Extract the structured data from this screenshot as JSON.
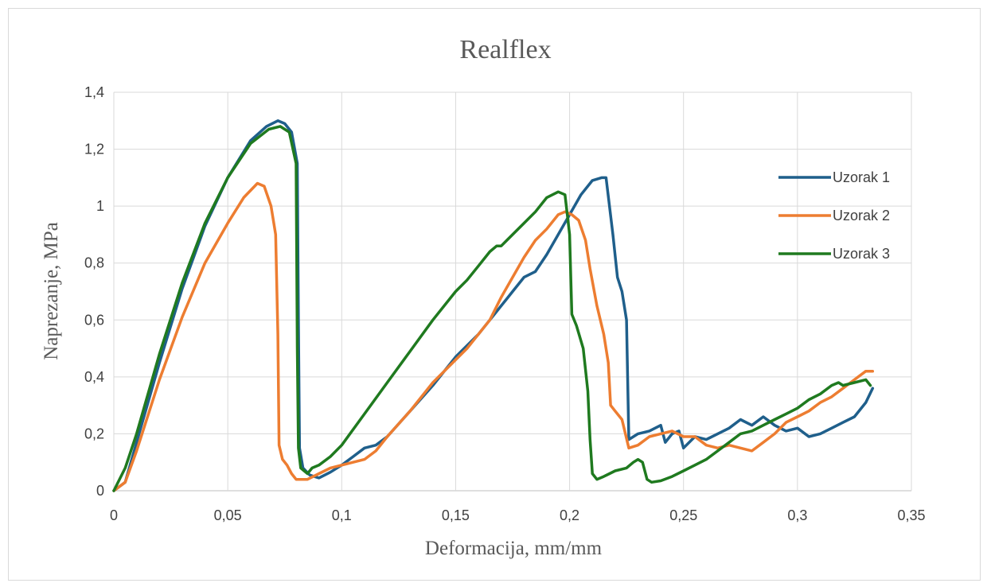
{
  "chart_data": {
    "type": "line",
    "title": "Realflex",
    "xlabel": "Deformacija, mm/mm",
    "ylabel": "Naprezanje, MPa",
    "xlim": [
      0,
      0.35
    ],
    "ylim": [
      0,
      1.4
    ],
    "x_ticks": [
      0,
      0.05,
      0.1,
      0.15,
      0.2,
      0.25,
      0.3,
      0.35
    ],
    "x_tick_labels": [
      "0",
      "0,05",
      "0,1",
      "0,15",
      "0,2",
      "0,25",
      "0,3",
      "0,35"
    ],
    "y_ticks": [
      0,
      0.2,
      0.4,
      0.6,
      0.8,
      1,
      1.2,
      1.4
    ],
    "y_tick_labels": [
      "0",
      "0,2",
      "0,4",
      "0,6",
      "0,8",
      "1",
      "1,2",
      "1,4"
    ],
    "grid": true,
    "legend_position": "right",
    "series": [
      {
        "name": "Uzorak 1",
        "color": "#1f5f8b",
        "points": [
          [
            0,
            0
          ],
          [
            0.005,
            0.03
          ],
          [
            0.01,
            0.17
          ],
          [
            0.02,
            0.45
          ],
          [
            0.03,
            0.71
          ],
          [
            0.04,
            0.93
          ],
          [
            0.05,
            1.1
          ],
          [
            0.06,
            1.23
          ],
          [
            0.067,
            1.28
          ],
          [
            0.072,
            1.3
          ],
          [
            0.075,
            1.29
          ],
          [
            0.078,
            1.26
          ],
          [
            0.0805,
            1.15
          ],
          [
            0.081,
            0.6
          ],
          [
            0.0815,
            0.15
          ],
          [
            0.083,
            0.08
          ],
          [
            0.086,
            0.055
          ],
          [
            0.09,
            0.045
          ],
          [
            0.095,
            0.065
          ],
          [
            0.1,
            0.09
          ],
          [
            0.105,
            0.12
          ],
          [
            0.11,
            0.15
          ],
          [
            0.115,
            0.16
          ],
          [
            0.12,
            0.19
          ],
          [
            0.13,
            0.28
          ],
          [
            0.14,
            0.37
          ],
          [
            0.15,
            0.47
          ],
          [
            0.16,
            0.55
          ],
          [
            0.165,
            0.6
          ],
          [
            0.17,
            0.65
          ],
          [
            0.175,
            0.7
          ],
          [
            0.18,
            0.75
          ],
          [
            0.185,
            0.77
          ],
          [
            0.19,
            0.83
          ],
          [
            0.195,
            0.9
          ],
          [
            0.2,
            0.97
          ],
          [
            0.205,
            1.04
          ],
          [
            0.21,
            1.09
          ],
          [
            0.214,
            1.1
          ],
          [
            0.216,
            1.1
          ],
          [
            0.219,
            0.9
          ],
          [
            0.221,
            0.75
          ],
          [
            0.223,
            0.7
          ],
          [
            0.225,
            0.6
          ],
          [
            0.226,
            0.18
          ],
          [
            0.23,
            0.2
          ],
          [
            0.235,
            0.21
          ],
          [
            0.24,
            0.23
          ],
          [
            0.242,
            0.17
          ],
          [
            0.245,
            0.2
          ],
          [
            0.248,
            0.21
          ],
          [
            0.25,
            0.15
          ],
          [
            0.255,
            0.19
          ],
          [
            0.26,
            0.18
          ],
          [
            0.265,
            0.2
          ],
          [
            0.27,
            0.22
          ],
          [
            0.275,
            0.25
          ],
          [
            0.28,
            0.23
          ],
          [
            0.285,
            0.26
          ],
          [
            0.29,
            0.23
          ],
          [
            0.295,
            0.21
          ],
          [
            0.3,
            0.22
          ],
          [
            0.305,
            0.19
          ],
          [
            0.31,
            0.2
          ],
          [
            0.315,
            0.22
          ],
          [
            0.32,
            0.24
          ],
          [
            0.325,
            0.26
          ],
          [
            0.33,
            0.31
          ],
          [
            0.333,
            0.36
          ]
        ]
      },
      {
        "name": "Uzorak 2",
        "color": "#ed7d31",
        "points": [
          [
            0,
            0
          ],
          [
            0.005,
            0.03
          ],
          [
            0.01,
            0.14
          ],
          [
            0.02,
            0.39
          ],
          [
            0.03,
            0.61
          ],
          [
            0.04,
            0.8
          ],
          [
            0.05,
            0.94
          ],
          [
            0.057,
            1.03
          ],
          [
            0.063,
            1.08
          ],
          [
            0.066,
            1.07
          ],
          [
            0.069,
            1.0
          ],
          [
            0.071,
            0.9
          ],
          [
            0.072,
            0.55
          ],
          [
            0.0725,
            0.16
          ],
          [
            0.074,
            0.11
          ],
          [
            0.076,
            0.09
          ],
          [
            0.078,
            0.06
          ],
          [
            0.08,
            0.04
          ],
          [
            0.085,
            0.04
          ],
          [
            0.09,
            0.06
          ],
          [
            0.095,
            0.08
          ],
          [
            0.1,
            0.09
          ],
          [
            0.105,
            0.1
          ],
          [
            0.11,
            0.11
          ],
          [
            0.115,
            0.14
          ],
          [
            0.12,
            0.19
          ],
          [
            0.13,
            0.28
          ],
          [
            0.14,
            0.38
          ],
          [
            0.15,
            0.46
          ],
          [
            0.155,
            0.5
          ],
          [
            0.16,
            0.55
          ],
          [
            0.165,
            0.6
          ],
          [
            0.17,
            0.68
          ],
          [
            0.175,
            0.75
          ],
          [
            0.18,
            0.82
          ],
          [
            0.185,
            0.88
          ],
          [
            0.19,
            0.92
          ],
          [
            0.195,
            0.97
          ],
          [
            0.198,
            0.98
          ],
          [
            0.201,
            0.97
          ],
          [
            0.204,
            0.95
          ],
          [
            0.207,
            0.88
          ],
          [
            0.209,
            0.78
          ],
          [
            0.212,
            0.65
          ],
          [
            0.215,
            0.55
          ],
          [
            0.217,
            0.45
          ],
          [
            0.218,
            0.3
          ],
          [
            0.22,
            0.28
          ],
          [
            0.223,
            0.25
          ],
          [
            0.226,
            0.15
          ],
          [
            0.23,
            0.16
          ],
          [
            0.235,
            0.19
          ],
          [
            0.24,
            0.2
          ],
          [
            0.245,
            0.21
          ],
          [
            0.25,
            0.19
          ],
          [
            0.255,
            0.19
          ],
          [
            0.26,
            0.16
          ],
          [
            0.265,
            0.15
          ],
          [
            0.27,
            0.16
          ],
          [
            0.275,
            0.15
          ],
          [
            0.28,
            0.14
          ],
          [
            0.285,
            0.17
          ],
          [
            0.29,
            0.2
          ],
          [
            0.295,
            0.24
          ],
          [
            0.3,
            0.26
          ],
          [
            0.305,
            0.28
          ],
          [
            0.31,
            0.31
          ],
          [
            0.315,
            0.33
          ],
          [
            0.32,
            0.36
          ],
          [
            0.325,
            0.39
          ],
          [
            0.33,
            0.42
          ],
          [
            0.333,
            0.42
          ]
        ]
      },
      {
        "name": "Uzorak 3",
        "color": "#1f7a1f",
        "points": [
          [
            0,
            0
          ],
          [
            0.005,
            0.08
          ],
          [
            0.01,
            0.2
          ],
          [
            0.02,
            0.48
          ],
          [
            0.03,
            0.73
          ],
          [
            0.04,
            0.94
          ],
          [
            0.05,
            1.1
          ],
          [
            0.06,
            1.22
          ],
          [
            0.068,
            1.27
          ],
          [
            0.073,
            1.28
          ],
          [
            0.077,
            1.26
          ],
          [
            0.08,
            1.15
          ],
          [
            0.0805,
            0.5
          ],
          [
            0.081,
            0.15
          ],
          [
            0.082,
            0.08
          ],
          [
            0.085,
            0.06
          ],
          [
            0.087,
            0.08
          ],
          [
            0.09,
            0.09
          ],
          [
            0.095,
            0.12
          ],
          [
            0.1,
            0.16
          ],
          [
            0.11,
            0.27
          ],
          [
            0.12,
            0.38
          ],
          [
            0.13,
            0.49
          ],
          [
            0.14,
            0.6
          ],
          [
            0.15,
            0.7
          ],
          [
            0.155,
            0.74
          ],
          [
            0.16,
            0.79
          ],
          [
            0.165,
            0.84
          ],
          [
            0.168,
            0.86
          ],
          [
            0.17,
            0.86
          ],
          [
            0.175,
            0.9
          ],
          [
            0.18,
            0.94
          ],
          [
            0.185,
            0.98
          ],
          [
            0.19,
            1.03
          ],
          [
            0.195,
            1.05
          ],
          [
            0.198,
            1.04
          ],
          [
            0.2,
            0.9
          ],
          [
            0.201,
            0.62
          ],
          [
            0.203,
            0.58
          ],
          [
            0.206,
            0.5
          ],
          [
            0.208,
            0.35
          ],
          [
            0.209,
            0.18
          ],
          [
            0.21,
            0.06
          ],
          [
            0.212,
            0.04
          ],
          [
            0.215,
            0.05
          ],
          [
            0.22,
            0.07
          ],
          [
            0.225,
            0.08
          ],
          [
            0.228,
            0.1
          ],
          [
            0.23,
            0.11
          ],
          [
            0.232,
            0.1
          ],
          [
            0.234,
            0.04
          ],
          [
            0.236,
            0.03
          ],
          [
            0.24,
            0.035
          ],
          [
            0.245,
            0.05
          ],
          [
            0.25,
            0.07
          ],
          [
            0.255,
            0.09
          ],
          [
            0.26,
            0.11
          ],
          [
            0.265,
            0.14
          ],
          [
            0.27,
            0.17
          ],
          [
            0.275,
            0.2
          ],
          [
            0.28,
            0.21
          ],
          [
            0.285,
            0.23
          ],
          [
            0.29,
            0.25
          ],
          [
            0.295,
            0.27
          ],
          [
            0.3,
            0.29
          ],
          [
            0.305,
            0.32
          ],
          [
            0.31,
            0.34
          ],
          [
            0.315,
            0.37
          ],
          [
            0.318,
            0.38
          ],
          [
            0.32,
            0.37
          ],
          [
            0.325,
            0.38
          ],
          [
            0.33,
            0.39
          ],
          [
            0.332,
            0.37
          ]
        ]
      }
    ]
  }
}
